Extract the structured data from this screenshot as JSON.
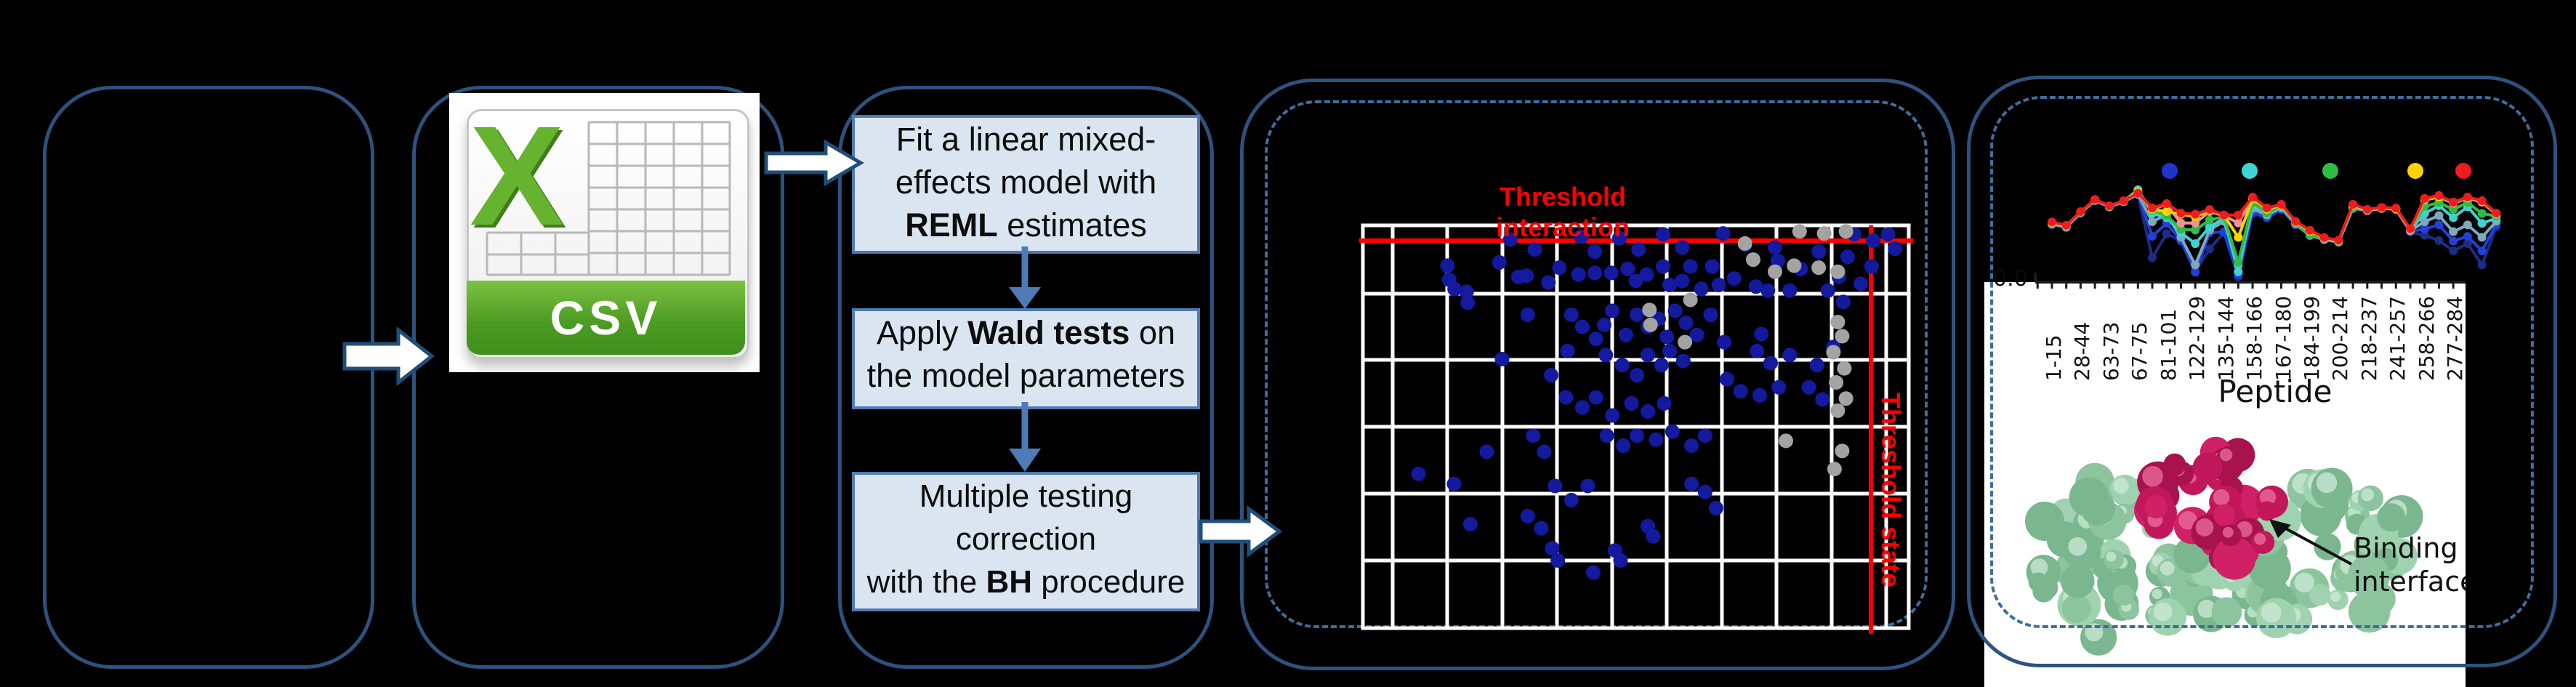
{
  "csv": {
    "label": "CSV",
    "letter": "X"
  },
  "flow": {
    "boxes": [
      {
        "lines": [
          [
            "Fit a linear mixed-"
          ],
          [
            "effects model with"
          ],
          [
            "REML",
            " estimates"
          ]
        ]
      },
      {
        "lines": [
          [
            "Apply ",
            "Wald tests",
            " on"
          ],
          [
            "the model parameters"
          ]
        ]
      },
      {
        "lines": [
          [
            "Multiple testing"
          ],
          [
            "correction"
          ],
          [
            "with the ",
            "BH",
            " procedure"
          ]
        ]
      }
    ]
  },
  "protein": {
    "label_line1": "Binding",
    "label_line2": "interface"
  },
  "chart_data": [
    {
      "type": "scatter",
      "labels": {
        "interaction": "Threshold interaction",
        "state": "Threshold state"
      },
      "grid": true,
      "axes_tick_labels_visible": false,
      "threshold_interaction_fy": 0.038,
      "threshold_state_fx": 0.9308,
      "series": [
        {
          "name": "peptides-significant",
          "color": "#141a9e",
          "points": [
            [
              0.27,
              0.035
            ],
            [
              0.315,
              0.06
            ],
            [
              0.4,
              0.028
            ],
            [
              0.425,
              0.065
            ],
            [
              0.47,
              0.032
            ],
            [
              0.505,
              0.06
            ],
            [
              0.55,
              0.022
            ],
            [
              0.585,
              0.055
            ],
            [
              0.7,
              0.048
            ],
            [
              0.66,
              0.02
            ],
            [
              0.755,
              0.055
            ],
            [
              0.9,
              0.022
            ],
            [
              0.935,
              0.038
            ],
            [
              0.962,
              0.022
            ],
            [
              0.975,
              0.058
            ],
            [
              0.888,
              0.078
            ],
            [
              0.835,
              0.065
            ],
            [
              0.155,
              0.1
            ],
            [
              0.158,
              0.135
            ],
            [
              0.168,
              0.158
            ],
            [
              0.19,
              0.165
            ],
            [
              0.25,
              0.092
            ],
            [
              0.285,
              0.128
            ],
            [
              0.3,
              0.125
            ],
            [
              0.34,
              0.142
            ],
            [
              0.36,
              0.105
            ],
            [
              0.395,
              0.122
            ],
            [
              0.425,
              0.118
            ],
            [
              0.455,
              0.118
            ],
            [
              0.485,
              0.108
            ],
            [
              0.5,
              0.138
            ],
            [
              0.52,
              0.122
            ],
            [
              0.55,
              0.102
            ],
            [
              0.562,
              0.148
            ],
            [
              0.585,
              0.138
            ],
            [
              0.6,
              0.102
            ],
            [
              0.62,
              0.158
            ],
            [
              0.64,
              0.102
            ],
            [
              0.652,
              0.148
            ],
            [
              0.68,
              0.132
            ],
            [
              0.72,
              0.152
            ],
            [
              0.76,
              0.088
            ],
            [
              0.742,
              0.162
            ],
            [
              0.782,
              0.162
            ],
            [
              0.802,
              0.108
            ],
            [
              0.852,
              0.162
            ],
            [
              0.872,
              0.128
            ],
            [
              0.912,
              0.145
            ],
            [
              0.932,
              0.102
            ],
            [
              0.192,
              0.192
            ],
            [
              0.302,
              0.222
            ],
            [
              0.382,
              0.222
            ],
            [
              0.402,
              0.252
            ],
            [
              0.427,
              0.282
            ],
            [
              0.442,
              0.247
            ],
            [
              0.457,
              0.212
            ],
            [
              0.482,
              0.272
            ],
            [
              0.502,
              0.222
            ],
            [
              0.522,
              0.252
            ],
            [
              0.542,
              0.232
            ],
            [
              0.557,
              0.277
            ],
            [
              0.572,
              0.212
            ],
            [
              0.592,
              0.242
            ],
            [
              0.612,
              0.272
            ],
            [
              0.637,
              0.222
            ],
            [
              0.662,
              0.29
            ],
            [
              0.73,
              0.27
            ],
            [
              0.88,
              0.19
            ],
            [
              0.255,
              0.332
            ],
            [
              0.345,
              0.372
            ],
            [
              0.375,
              0.312
            ],
            [
              0.445,
              0.322
            ],
            [
              0.475,
              0.347
            ],
            [
              0.502,
              0.372
            ],
            [
              0.522,
              0.322
            ],
            [
              0.547,
              0.347
            ],
            [
              0.562,
              0.312
            ],
            [
              0.587,
              0.337
            ],
            [
              0.667,
              0.382
            ],
            [
              0.722,
              0.312
            ],
            [
              0.747,
              0.342
            ],
            [
              0.782,
              0.322
            ],
            [
              0.832,
              0.347
            ],
            [
              0.862,
              0.302
            ],
            [
              0.372,
              0.427
            ],
            [
              0.402,
              0.452
            ],
            [
              0.427,
              0.427
            ],
            [
              0.457,
              0.472
            ],
            [
              0.492,
              0.442
            ],
            [
              0.522,
              0.462
            ],
            [
              0.552,
              0.442
            ],
            [
              0.692,
              0.412
            ],
            [
              0.727,
              0.422
            ],
            [
              0.762,
              0.402
            ],
            [
              0.817,
              0.402
            ],
            [
              0.842,
              0.432
            ],
            [
              0.102,
              0.617
            ],
            [
              0.227,
              0.562
            ],
            [
              0.312,
              0.522
            ],
            [
              0.332,
              0.562
            ],
            [
              0.447,
              0.522
            ],
            [
              0.477,
              0.547
            ],
            [
              0.502,
              0.522
            ],
            [
              0.537,
              0.532
            ],
            [
              0.567,
              0.512
            ],
            [
              0.602,
              0.547
            ],
            [
              0.627,
              0.522
            ],
            [
              0.167,
              0.642
            ],
            [
              0.197,
              0.742
            ],
            [
              0.302,
              0.722
            ],
            [
              0.327,
              0.752
            ],
            [
              0.347,
              0.802
            ],
            [
              0.357,
              0.832
            ],
            [
              0.422,
              0.862
            ],
            [
              0.462,
              0.807
            ],
            [
              0.472,
              0.832
            ],
            [
              0.522,
              0.747
            ],
            [
              0.532,
              0.772
            ],
            [
              0.602,
              0.642
            ],
            [
              0.627,
              0.662
            ],
            [
              0.647,
              0.702
            ],
            [
              0.352,
              0.647
            ],
            [
              0.382,
              0.682
            ],
            [
              0.412,
              0.647
            ]
          ]
        },
        {
          "name": "peptides-nonsignificant",
          "color": "#a3a3a3",
          "points": [
            [
              0.8,
              0.015
            ],
            [
              0.845,
              0.02
            ],
            [
              0.885,
              0.015
            ],
            [
              0.7,
              0.045
            ],
            [
              0.715,
              0.085
            ],
            [
              0.79,
              0.1
            ],
            [
              0.755,
              0.115
            ],
            [
              0.835,
              0.105
            ],
            [
              0.87,
              0.115
            ],
            [
              0.6,
              0.185
            ],
            [
              0.525,
              0.21
            ],
            [
              0.527,
              0.247
            ],
            [
              0.59,
              0.29
            ],
            [
              0.87,
              0.24
            ],
            [
              0.878,
              0.275
            ],
            [
              0.862,
              0.315
            ],
            [
              0.882,
              0.355
            ],
            [
              0.867,
              0.39
            ],
            [
              0.885,
              0.43
            ],
            [
              0.87,
              0.46
            ],
            [
              0.775,
              0.535
            ],
            [
              0.878,
              0.56
            ],
            [
              0.864,
              0.605
            ]
          ]
        }
      ]
    },
    {
      "type": "line",
      "xlabel": "Peptide",
      "first_ytick": "0.0",
      "categories": [
        "1-15",
        "28-44",
        "63-73",
        "67-75",
        "81-101",
        "122-129",
        "135-144",
        "158-166",
        "167-180",
        "184-199",
        "200-214",
        "218-237",
        "241-257",
        "258-266",
        "277-284"
      ],
      "points_per_series": 32,
      "legend_dot_colors": [
        "#2233cc",
        "#40d5d5",
        "#2fbc43",
        "#ffd200",
        "#ee1c1c"
      ],
      "series": [
        {
          "name": "series-1",
          "color": "#1d2c86",
          "values": [
            0.55,
            0.52,
            0.66,
            0.78,
            0.72,
            0.77,
            0.84,
            0.235,
            0.465,
            0.395,
            0.105,
            0.32,
            0.475,
            0.05,
            0.66,
            0.615,
            0.695,
            0.55,
            0.445,
            0.405,
            0.38,
            0.705,
            0.685,
            0.71,
            0.7,
            0.48,
            0.45,
            0.4,
            0.3,
            0.37,
            0.165,
            0.53
          ]
        },
        {
          "name": "series-2",
          "color": "#2340d8",
          "values": [
            0.555,
            0.525,
            0.665,
            0.783,
            0.722,
            0.772,
            0.843,
            0.44,
            0.565,
            0.4,
            0.095,
            0.475,
            0.483,
            0.07,
            0.675,
            0.625,
            0.705,
            0.555,
            0.448,
            0.408,
            0.383,
            0.708,
            0.688,
            0.712,
            0.702,
            0.488,
            0.51,
            0.55,
            0.395,
            0.44,
            0.3,
            0.555
          ]
        },
        {
          "name": "series-3",
          "color": "#7fa8bf",
          "values": [
            0.56,
            0.53,
            0.668,
            0.785,
            0.725,
            0.774,
            0.845,
            0.58,
            0.65,
            0.43,
            0.165,
            0.5,
            0.585,
            0.16,
            0.708,
            0.645,
            0.715,
            0.56,
            0.45,
            0.41,
            0.386,
            0.712,
            0.69,
            0.714,
            0.704,
            0.495,
            0.58,
            0.64,
            0.485,
            0.55,
            0.43,
            0.585
          ]
        },
        {
          "name": "series-4",
          "color": "#3fd2d2",
          "values": [
            0.575,
            0.54,
            0.672,
            0.79,
            0.728,
            0.777,
            0.888,
            0.66,
            0.62,
            0.475,
            0.37,
            0.53,
            0.615,
            0.1,
            0.745,
            0.655,
            0.725,
            0.565,
            0.453,
            0.413,
            0.39,
            0.716,
            0.694,
            0.716,
            0.706,
            0.503,
            0.66,
            0.735,
            0.62,
            0.725,
            0.565,
            0.615
          ]
        },
        {
          "name": "series-5",
          "color": "#2fbc43",
          "values": [
            0.567,
            0.537,
            0.67,
            0.787,
            0.727,
            0.776,
            0.868,
            0.69,
            0.64,
            0.508,
            0.5,
            0.598,
            0.628,
            0.19,
            0.765,
            0.665,
            0.733,
            0.57,
            0.455,
            0.418,
            0.394,
            0.718,
            0.697,
            0.718,
            0.708,
            0.506,
            0.728,
            0.765,
            0.698,
            0.765,
            0.66,
            0.635
          ]
        },
        {
          "name": "series-6",
          "color": "#ee9394",
          "values": [
            0.57,
            0.54,
            0.673,
            0.789,
            0.729,
            0.777,
            0.858,
            0.7,
            0.748,
            0.568,
            0.568,
            0.678,
            0.638,
            0.568,
            0.805,
            0.698,
            0.738,
            0.576,
            0.488,
            0.42,
            0.397,
            0.738,
            0.688,
            0.708,
            0.7,
            0.498,
            0.788,
            0.818,
            0.758,
            0.808,
            0.768,
            0.652
          ]
        },
        {
          "name": "series-7",
          "color": "#ffd200",
          "values": [
            0.572,
            0.541,
            0.675,
            0.792,
            0.731,
            0.779,
            0.87,
            0.7,
            0.678,
            0.652,
            0.628,
            0.688,
            0.643,
            0.43,
            0.798,
            0.703,
            0.74,
            0.578,
            0.49,
            0.426,
            0.398,
            0.738,
            0.698,
            0.713,
            0.703,
            0.508,
            0.798,
            0.818,
            0.768,
            0.813,
            0.778,
            0.658
          ]
        },
        {
          "name": "series-8",
          "color": "#ee1c1c",
          "values": [
            0.578,
            0.546,
            0.678,
            0.795,
            0.733,
            0.782,
            0.856,
            0.713,
            0.755,
            0.663,
            0.653,
            0.698,
            0.645,
            0.645,
            0.818,
            0.713,
            0.748,
            0.583,
            0.498,
            0.428,
            0.403,
            0.748,
            0.7,
            0.718,
            0.712,
            0.513,
            0.805,
            0.833,
            0.768,
            0.818,
            0.783,
            0.663
          ]
        }
      ]
    }
  ]
}
